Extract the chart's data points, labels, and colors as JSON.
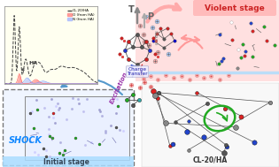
{
  "bg_color": "#ffffff",
  "top_right_label": "Violent stage",
  "bottom_left_label": "Initial stage",
  "bottom_right_label": "CL-20/HA",
  "shock_label": "SHOCK",
  "charge_transfer_label": "Charge\nTransfer",
  "excitation_label": "Excitation",
  "tp_label_t": "T",
  "tp_label_p": "P",
  "stage_label": "stage",
  "legend_cl20ha": "CL-20/HA",
  "legend_o": "O (from HA)",
  "legend_n": "N (from HA)",
  "ha_label": "HA",
  "plot_bg": "#fffff0",
  "violent_bg": "#ffe0e0",
  "violent_title_color": "#cc2222",
  "shock_bg": "#ddeeff",
  "arrow_pink": "#ffaaaa",
  "arrow_gray": "#aaaaaa",
  "color_red": "#dd2222",
  "color_blue": "#2244cc",
  "color_green": "#22aa22",
  "color_gray": "#666666",
  "color_dark": "#222222",
  "color_light_blue": "#aaccee",
  "color_pink_circle": "#ffaaaa",
  "violent_separator": "#aaddff",
  "panel_border": "#999999",
  "shock_text_color": "#1188ff",
  "initial_arrow_color": "#88ccff",
  "initial_text_color": "#334455"
}
